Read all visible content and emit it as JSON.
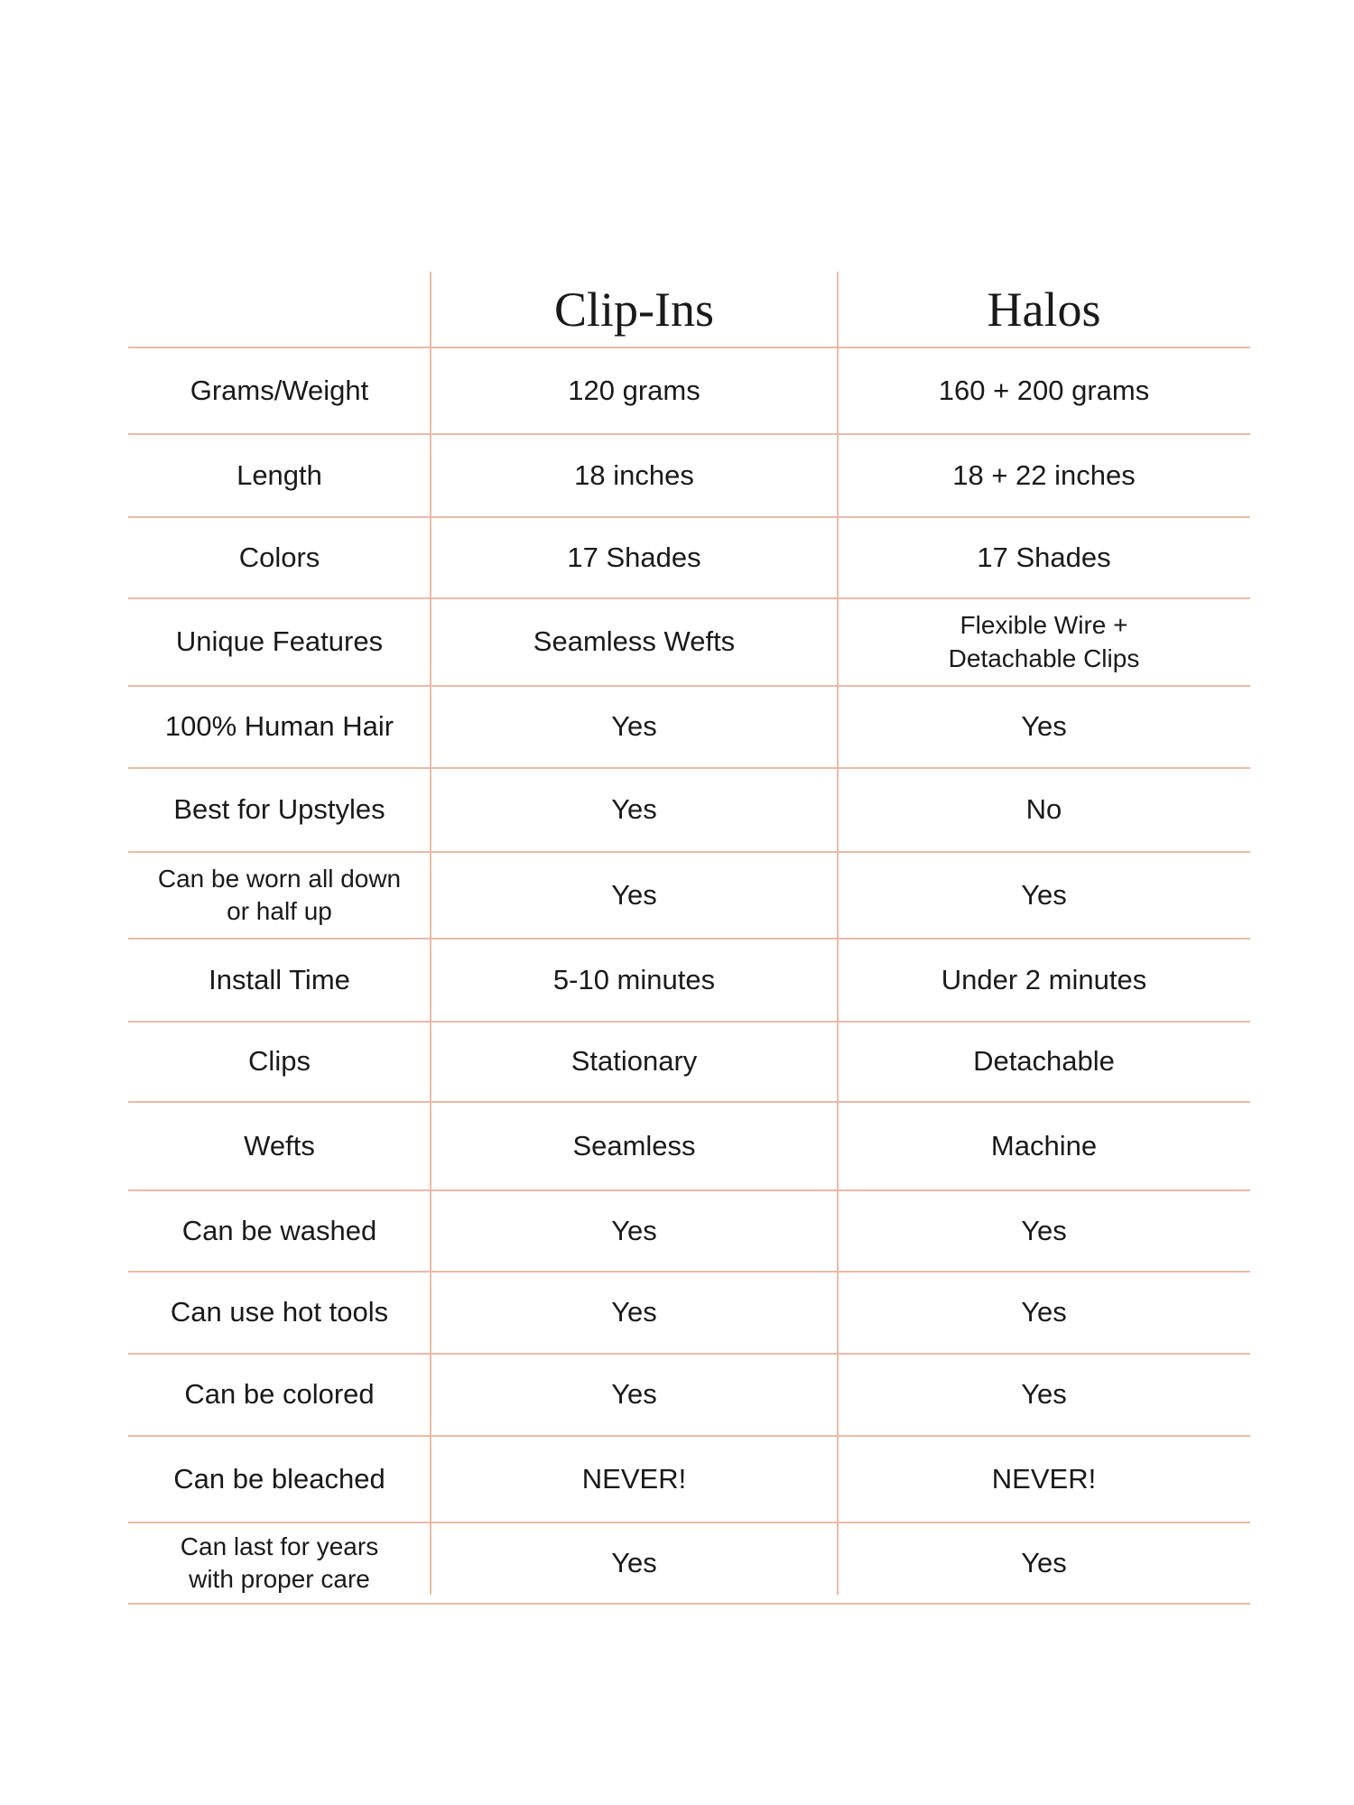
{
  "table": {
    "columns": [
      "Clip-Ins",
      "Halos"
    ],
    "rows": [
      [
        "Grams/Weight",
        "120 grams",
        "160 + 200 grams"
      ],
      [
        "Length",
        "18 inches",
        "18 + 22 inches"
      ],
      [
        "Colors",
        "17 Shades",
        "17 Shades"
      ],
      [
        "Unique Features",
        "Seamless Wefts",
        [
          "Flexible Wire +",
          "Detachable Clips"
        ]
      ],
      [
        "100% Human Hair",
        "Yes",
        "Yes"
      ],
      [
        "Best for Upstyles",
        "Yes",
        "No"
      ],
      [
        [
          "Can be worn all down",
          "or half up"
        ],
        "Yes",
        "Yes"
      ],
      [
        "Install Time",
        "5-10 minutes",
        "Under 2 minutes"
      ],
      [
        "Clips",
        "Stationary",
        "Detachable"
      ],
      [
        "Wefts",
        "Seamless",
        "Machine"
      ],
      [
        "Can be washed",
        "Yes",
        "Yes"
      ],
      [
        "Can use hot tools",
        "Yes",
        "Yes"
      ],
      [
        "Can be colored",
        "Yes",
        "Yes"
      ],
      [
        "Can be bleached",
        "NEVER!",
        "NEVER!"
      ],
      [
        [
          "Can last for years",
          "with proper care"
        ],
        "Yes",
        "Yes"
      ]
    ]
  }
}
